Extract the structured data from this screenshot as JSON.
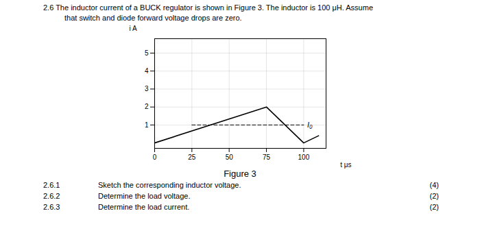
{
  "chart_data": {
    "type": "line",
    "title": "2.6  The inductor current of a BUCK regulator is shown in Figure 3.  The inductor is 100 μH.  Assume",
    "subtitle": "that switch and diode forward voltage drops are zero.",
    "caption": "Figure 3",
    "xlabel": "t μs",
    "ylabel": "i A",
    "xlim": [
      0,
      115
    ],
    "ylim": [
      -0.3,
      5.8
    ],
    "xticks": [
      0,
      25,
      50,
      75,
      100
    ],
    "yticks": [
      1,
      2,
      3,
      4,
      5
    ],
    "grid": true,
    "series": [
      {
        "x": [
          0,
          75,
          100,
          110
        ],
        "values": [
          0,
          2,
          0,
          0.4
        ],
        "color": "#000000",
        "line_style": "solid"
      },
      {
        "x": [
          25,
          100
        ],
        "values": [
          1.0,
          1.0
        ],
        "color": "#000000",
        "line_style": "dashed"
      }
    ],
    "annotations": [
      {
        "text": "I₀",
        "x": 100,
        "y": 1.0
      }
    ],
    "notes": [
      {
        "num": "2.6.1",
        "text": "Sketch the corresponding inductor voltage.",
        "marks": "(4)"
      },
      {
        "num": "2.6.2",
        "text": "Determine the load voltage.",
        "marks": "(2)"
      },
      {
        "num": "2.6.3",
        "text": "Determine the load current.",
        "marks": "(2)"
      }
    ]
  }
}
